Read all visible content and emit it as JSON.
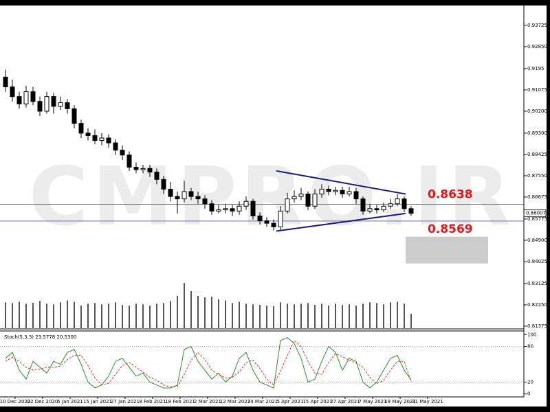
{
  "chart_data": [
    {
      "type": "candlestick",
      "watermark": "CMPRO.IR",
      "xlim": [
        -0.8,
        75.4
      ],
      "ylim": [
        0.8129,
        0.9454
      ],
      "yticks": [
        0.93725,
        {
          "value": 0.9285,
          "label": "0.92850"
        },
        0.9195,
        0.91075,
        {
          "value": 0.902,
          "label": "0.90200"
        },
        {
          "value": 0.893,
          "label": "0.89300"
        },
        0.88425,
        {
          "value": 0.8755,
          "label": "0.87550"
        },
        0.86675,
        0.85775,
        {
          "value": 0.849,
          "label": "0.84900"
        },
        0.84025,
        0.83125,
        {
          "value": 0.8225,
          "label": "0.82250"
        },
        0.81375
      ],
      "y2lim": [
        0,
        10000
      ],
      "bull_color": "#ffffff",
      "bear_color": "#000000",
      "volume_color": "#555555",
      "open": [
        0.916,
        0.912,
        0.908,
        0.905,
        0.91,
        0.906,
        0.902,
        0.908,
        0.904,
        0.9055,
        0.903,
        0.897,
        0.893,
        0.892,
        0.89,
        0.891,
        0.889,
        0.886,
        0.884,
        0.879,
        0.878,
        0.8785,
        0.877,
        0.874,
        0.87,
        0.867,
        0.866,
        0.869,
        0.867,
        0.866,
        0.864,
        0.861,
        0.8615,
        0.862,
        0.861,
        0.863,
        0.865,
        0.859,
        0.857,
        0.856,
        0.8545,
        0.861,
        0.866,
        0.867,
        0.868,
        0.863,
        0.868,
        0.87,
        0.869,
        0.8695,
        0.868,
        0.869,
        0.866,
        0.861,
        0.862,
        0.8615,
        0.863,
        0.864,
        0.866,
        0.862
      ],
      "high": [
        0.919,
        0.915,
        0.91,
        0.9125,
        0.912,
        0.908,
        0.91,
        0.9095,
        0.908,
        0.907,
        0.9045,
        0.8985,
        0.895,
        0.8945,
        0.893,
        0.8925,
        0.8905,
        0.888,
        0.8855,
        0.881,
        0.88,
        0.88,
        0.8785,
        0.8755,
        0.873,
        0.869,
        0.8735,
        0.8705,
        0.869,
        0.8675,
        0.8655,
        0.8635,
        0.864,
        0.8635,
        0.865,
        0.867,
        0.866,
        0.8605,
        0.8585,
        0.8575,
        0.863,
        0.8685,
        0.8695,
        0.8705,
        0.869,
        0.87,
        0.872,
        0.8715,
        0.871,
        0.871,
        0.871,
        0.8705,
        0.867,
        0.864,
        0.8635,
        0.8645,
        0.866,
        0.868,
        0.867,
        0.863
      ],
      "low": [
        0.91,
        0.906,
        0.903,
        0.9035,
        0.9045,
        0.9,
        0.901,
        0.901,
        0.9025,
        0.901,
        0.895,
        0.891,
        0.89,
        0.8885,
        0.888,
        0.887,
        0.884,
        0.882,
        0.8775,
        0.8765,
        0.8765,
        0.875,
        0.872,
        0.868,
        0.865,
        0.86,
        0.8645,
        0.8655,
        0.864,
        0.862,
        0.8595,
        0.86,
        0.86,
        0.859,
        0.8595,
        0.8615,
        0.8575,
        0.8555,
        0.8545,
        0.853,
        0.853,
        0.86,
        0.8645,
        0.8655,
        0.8615,
        0.862,
        0.8665,
        0.8675,
        0.8675,
        0.8665,
        0.867,
        0.864,
        0.8595,
        0.86,
        0.86,
        0.8605,
        0.862,
        0.863,
        0.8605,
        0.859
      ],
      "close": [
        0.912,
        0.908,
        0.905,
        0.91,
        0.906,
        0.902,
        0.908,
        0.904,
        0.9055,
        0.903,
        0.897,
        0.893,
        0.892,
        0.89,
        0.891,
        0.889,
        0.886,
        0.884,
        0.879,
        0.878,
        0.8785,
        0.877,
        0.874,
        0.87,
        0.867,
        0.866,
        0.869,
        0.867,
        0.866,
        0.864,
        0.861,
        0.8615,
        0.862,
        0.861,
        0.863,
        0.865,
        0.859,
        0.857,
        0.856,
        0.8545,
        0.861,
        0.866,
        0.867,
        0.868,
        0.863,
        0.868,
        0.87,
        0.869,
        0.8695,
        0.868,
        0.869,
        0.866,
        0.861,
        0.862,
        0.8615,
        0.863,
        0.864,
        0.866,
        0.862,
        0.86007
      ],
      "volume": [
        800,
        780,
        820,
        760,
        790,
        850,
        760,
        740,
        800,
        860,
        820,
        700,
        760,
        780,
        740,
        760,
        800,
        720,
        700,
        760,
        740,
        700,
        760,
        780,
        840,
        1000,
        1400,
        1150,
        1000,
        960,
        980,
        900,
        860,
        780,
        820,
        760,
        740,
        720,
        700,
        680,
        800,
        760,
        740,
        760,
        780,
        720,
        760,
        700,
        760,
        720,
        740,
        700,
        760,
        800,
        780,
        740,
        800,
        820,
        760,
        450
      ],
      "last_price": 0.86007,
      "hlines": [
        0.8638,
        0.8569
      ],
      "hline_color": "#6666dd",
      "hline_label_color": "#e8141c",
      "trendline_color": "#1a1a80",
      "trendlines": [
        {
          "x": [
            39.4,
            58.2
          ],
          "y": [
            0.8775,
            0.868
          ]
        },
        {
          "x": [
            39.4,
            58.2
          ],
          "y": [
            0.8528,
            0.86
          ]
        }
      ],
      "zone": {
        "x": [
          58.2,
          70.2
        ],
        "y": [
          0.8505,
          0.8395
        ],
        "color": "#cccccc"
      }
    },
    {
      "type": "line",
      "label": "Stoch(5,3,3) 23.5778 20.5300",
      "xlim": [
        -0.8,
        75.4
      ],
      "ylim": [
        -5,
        105
      ],
      "yticks": [
        100,
        80,
        20,
        0
      ],
      "levels": [
        80,
        20
      ],
      "xticks": [
        {
          "value": 1.4,
          "label": "10 Dec 2020"
        },
        {
          "value": 5.4,
          "label": "22 Dec 2020"
        },
        {
          "value": 9.4,
          "label": "5 Jan 2021"
        },
        {
          "value": 13.4,
          "label": "15 Jan 2021"
        },
        {
          "value": 17.4,
          "label": "27 Jan 2021"
        },
        {
          "value": 21.4,
          "label": "8 Feb 2021"
        },
        {
          "value": 25.4,
          "label": "18 Feb 2021"
        },
        {
          "value": 29.4,
          "label": "2 Mar 2021"
        },
        {
          "value": 33.4,
          "label": "12 Mar 2021"
        },
        {
          "value": 37.4,
          "label": "24 Mar 2021"
        },
        {
          "value": 41.4,
          "label": "5 Apr 2021"
        },
        {
          "value": 45.4,
          "label": "15 Apr 2021"
        },
        {
          "value": 49.4,
          "label": "27 Apr 2021"
        },
        {
          "value": 53.4,
          "label": "7 May 2021"
        },
        {
          "value": 57.4,
          "label": "19 May 2021"
        },
        {
          "value": 61.4,
          "label": "31 May 2021"
        }
      ],
      "series": [
        {
          "color": "#2e8b2e",
          "dashed": false,
          "values": [
            60,
            70,
            40,
            25,
            55,
            45,
            35,
            55,
            50,
            70,
            75,
            50,
            20,
            10,
            15,
            30,
            55,
            60,
            45,
            30,
            35,
            20,
            15,
            10,
            10,
            15,
            75,
            80,
            55,
            40,
            25,
            35,
            20,
            30,
            60,
            70,
            40,
            20,
            15,
            10,
            90,
            95,
            85,
            60,
            20,
            25,
            55,
            80,
            70,
            40,
            60,
            55,
            20,
            10,
            20,
            40,
            60,
            65,
            40,
            23.5778
          ]
        },
        {
          "color": "#e03030",
          "dashed": true,
          "values": [
            55,
            62,
            55,
            45,
            40,
            42,
            45,
            45,
            47,
            58,
            65,
            65,
            48,
            27,
            15,
            18,
            33,
            48,
            53,
            45,
            37,
            28,
            23,
            15,
            12,
            12,
            33,
            57,
            70,
            58,
            40,
            33,
            27,
            28,
            37,
            53,
            57,
            43,
            25,
            15,
            38,
            65,
            90,
            80,
            55,
            35,
            33,
            53,
            68,
            63,
            57,
            52,
            45,
            28,
            17,
            23,
            40,
            55,
            55,
            20.53
          ]
        }
      ]
    }
  ]
}
